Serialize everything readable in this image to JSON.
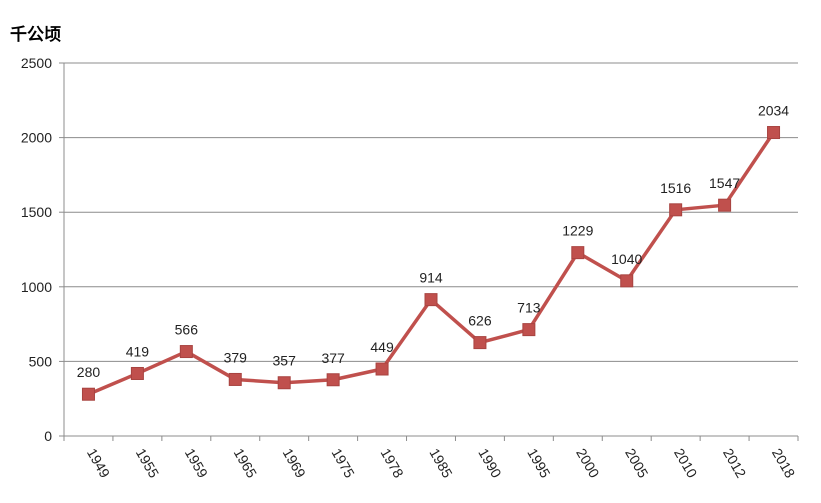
{
  "unit_label": "千公顷",
  "chart_data": {
    "type": "line",
    "title": "",
    "xlabel": "",
    "ylabel": "千公顷",
    "categories": [
      "1949",
      "1955",
      "1959",
      "1965",
      "1969",
      "1975",
      "1978",
      "1985",
      "1990",
      "1995",
      "2000",
      "2005",
      "2010",
      "2012",
      "2018"
    ],
    "series": [
      {
        "values": [
          280,
          419,
          566,
          379,
          357,
          377,
          449,
          914,
          626,
          713,
          1229,
          1040,
          1516,
          1547,
          2034
        ],
        "color": "#c0504d"
      }
    ],
    "ylim": [
      0,
      2500
    ],
    "yticks": [
      0,
      500,
      1000,
      1500,
      2000,
      2500
    ],
    "grid": true,
    "legend": "none",
    "data_labels": true
  }
}
